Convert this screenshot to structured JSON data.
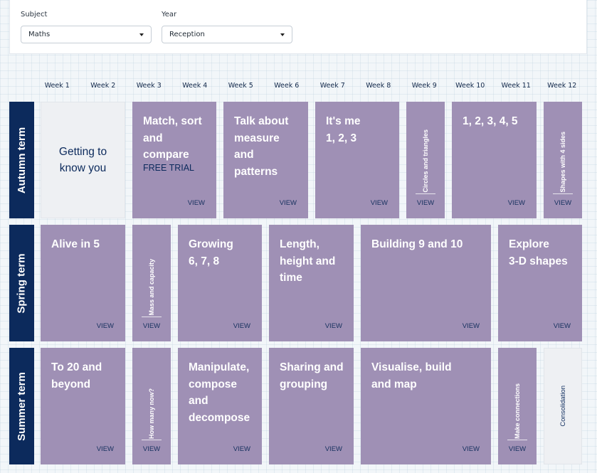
{
  "filters": {
    "subject_label": "Subject",
    "subject_value": "Maths",
    "year_label": "Year",
    "year_value": "Reception"
  },
  "weeks": [
    "Week 1",
    "Week 2",
    "Week 3",
    "Week 4",
    "Week 5",
    "Week 6",
    "Week 7",
    "Week 8",
    "Week 9",
    "Week 10",
    "Week 11",
    "Week 12"
  ],
  "terms": {
    "autumn": "Autumn term",
    "spring": "Spring term",
    "summer": "Summer term"
  },
  "view_label": "VIEW",
  "autumn_blocks": {
    "getting_to_know_you": "Getting to\nknow you",
    "match_sort_compare": "Match, sort\nand\ncompare",
    "free_trial": "FREE TRIAL",
    "talk_about_measure": "Talk about\nmeasure\nand\npatterns",
    "its_me": "It's me\n1, 2, 3",
    "circles_triangles": "Circles and triangles",
    "one_to_five": "1, 2, 3, 4, 5",
    "shapes_4_sides": "Shapes with 4 sides"
  },
  "spring_blocks": {
    "alive_in_5": "Alive in 5",
    "mass_capacity": "Mass and capacity",
    "growing": "Growing\n6, 7, 8",
    "length_height_time": "Length,\nheight and\ntime",
    "building_9_10": "Building 9 and 10",
    "explore_3d": "Explore\n3-D shapes"
  },
  "summer_blocks": {
    "to_20": "To 20 and\nbeyond",
    "how_many_now": "How many now?",
    "manipulate": "Manipulate,\ncompose\nand\ndecompose",
    "sharing_grouping": "Sharing and\ngrouping",
    "visualise": "Visualise, build\nand map",
    "make_connections": "Make connections",
    "consolidation": "Consolidation"
  },
  "colors": {
    "block_purple": "#9f90b5",
    "term_navy": "#0c2a5c",
    "grey_block": "#eef0f3"
  }
}
